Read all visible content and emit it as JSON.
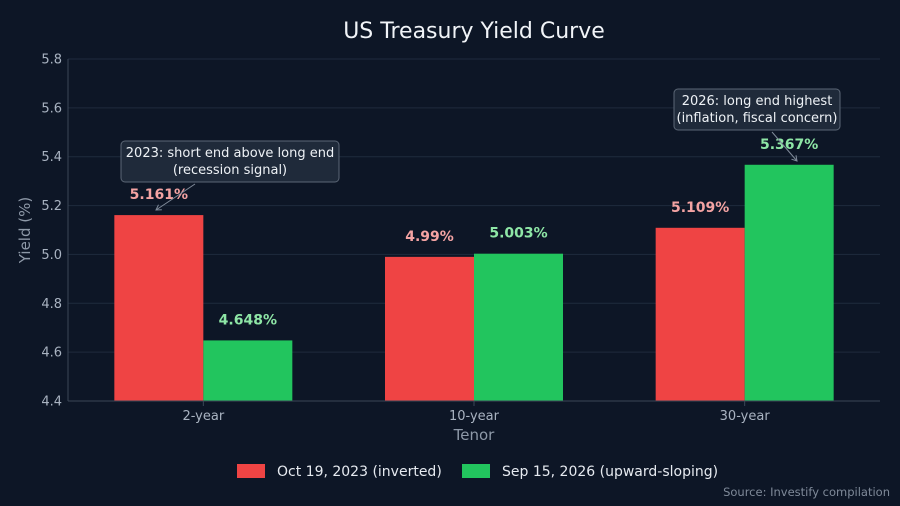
{
  "chart_data": {
    "type": "bar",
    "title": "US Treasury Yield Curve",
    "xlabel": "Tenor",
    "ylabel": "Yield (%)",
    "categories": [
      "2-year",
      "10-year",
      "30-year"
    ],
    "ylim": [
      4.4,
      5.8
    ],
    "yticks": [
      "4.4",
      "4.6",
      "4.8",
      "5.0",
      "5.2",
      "5.4",
      "5.6",
      "5.8"
    ],
    "grid": true,
    "legend_position": "bottom-center",
    "series": [
      {
        "name": "Oct 19, 2023 (inverted)",
        "color": "#ef4444",
        "label_color": "#f4a3a3",
        "values": [
          5.161,
          4.99,
          5.109
        ],
        "labels": [
          "5.161%",
          "4.99%",
          "5.109%"
        ]
      },
      {
        "name": "Sep 15, 2026 (upward-sloping)",
        "color": "#22c55e",
        "label_color": "#8ee6a6",
        "values": [
          4.648,
          5.003,
          5.367
        ],
        "labels": [
          "4.648%",
          "5.003%",
          "5.367%"
        ]
      }
    ],
    "annotations": [
      {
        "lines": [
          "2023: short end above long end",
          "(recession signal)"
        ],
        "target_series": 0,
        "target_category": 0
      },
      {
        "lines": [
          "2026: long end highest",
          "(inflation, fiscal concern)"
        ],
        "target_series": 1,
        "target_category": 2
      }
    ],
    "source": "Source: Investify compilation"
  }
}
